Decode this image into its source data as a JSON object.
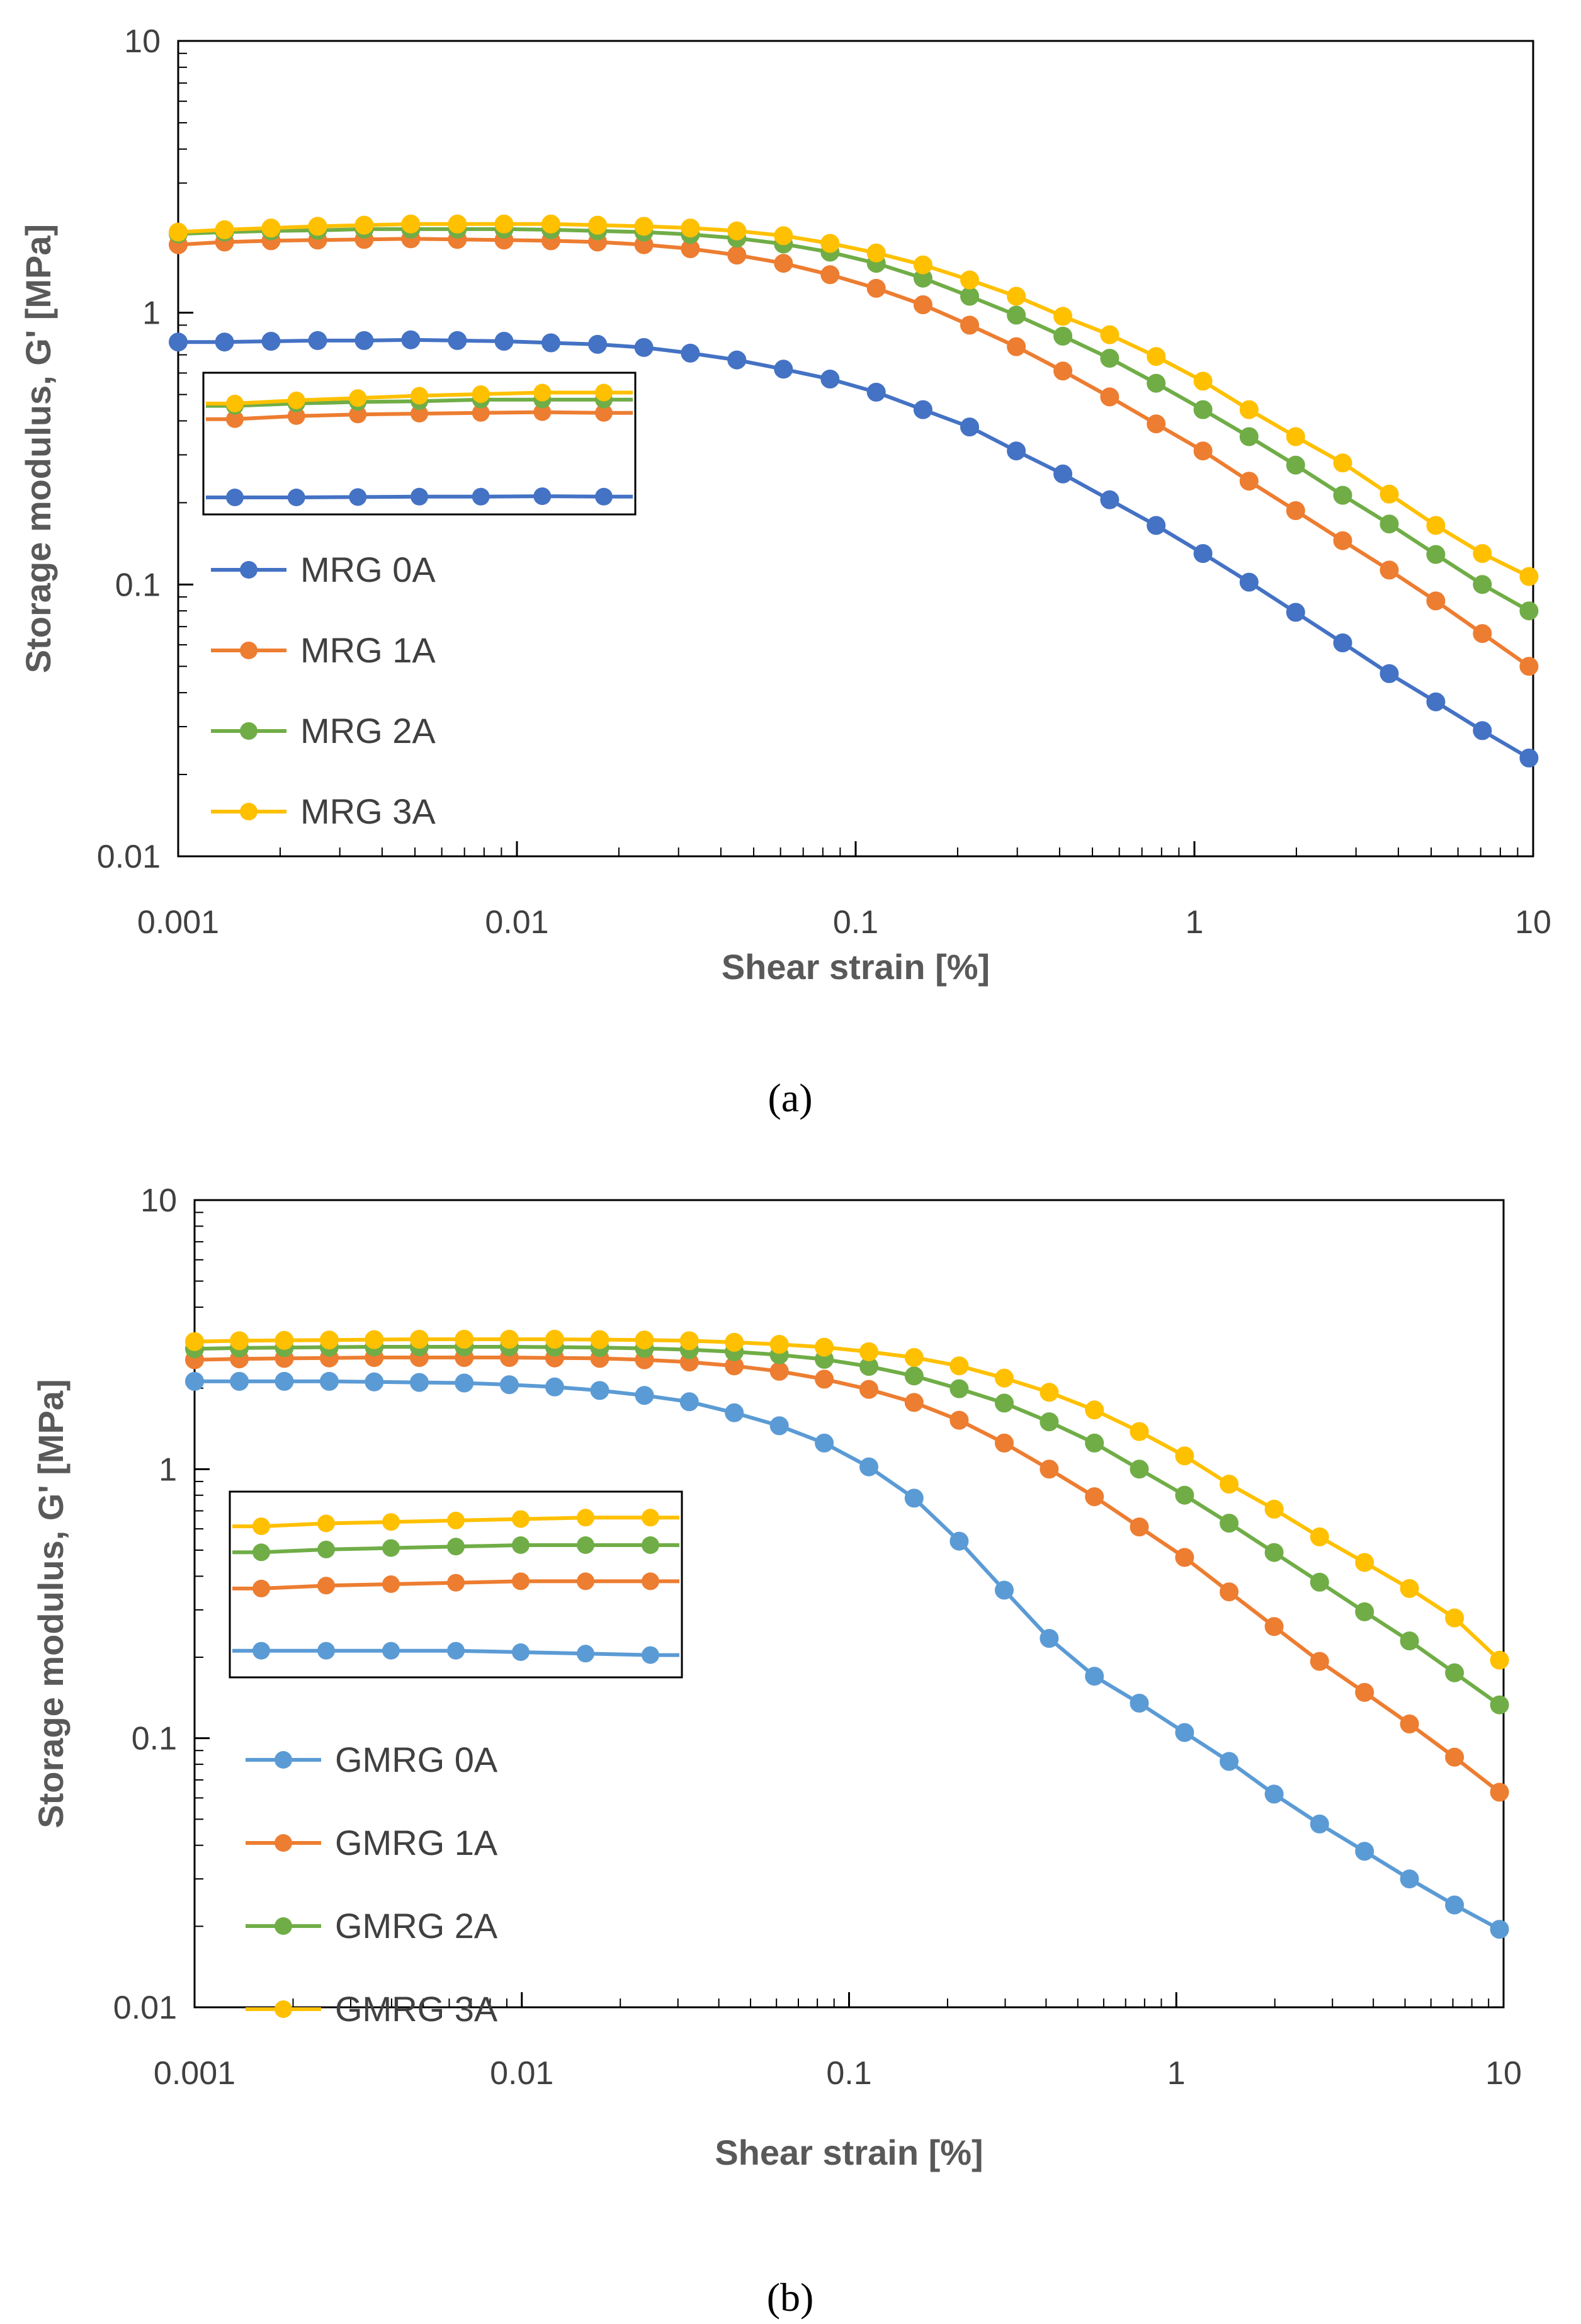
{
  "chart_data": [
    {
      "type": "line",
      "panel": "a",
      "xscale": "log",
      "yscale": "log",
      "xlim": [
        0.001,
        10
      ],
      "ylim": [
        0.01,
        10
      ],
      "xlabel": "Shear strain [%]",
      "ylabel": "Storage modulus, G' [MPa]",
      "x_ticks": [
        "0.001",
        "0.01",
        "0.1",
        "1",
        "10"
      ],
      "y_ticks": [
        "0.01",
        "0.1",
        "1",
        "10"
      ],
      "legend_position": "left",
      "x": [
        0.001,
        0.00137,
        0.00188,
        0.00258,
        0.00354,
        0.00486,
        0.00667,
        0.00916,
        0.0126,
        0.0173,
        0.0237,
        0.0325,
        0.0446,
        0.0612,
        0.084,
        0.115,
        0.158,
        0.217,
        0.298,
        0.409,
        0.562,
        0.771,
        1.06,
        1.45,
        1.99,
        2.74,
        3.76,
        5.16,
        7.08,
        9.72
      ],
      "series": [
        {
          "name": "MRG 0A",
          "color": "#4472C4",
          "values": [
            0.78,
            0.78,
            0.785,
            0.79,
            0.79,
            0.795,
            0.79,
            0.785,
            0.775,
            0.765,
            0.745,
            0.71,
            0.67,
            0.62,
            0.57,
            0.51,
            0.44,
            0.38,
            0.31,
            0.255,
            0.205,
            0.165,
            0.13,
            0.102,
            0.079,
            0.061,
            0.047,
            0.037,
            0.029,
            0.023
          ]
        },
        {
          "name": "MRG 1A",
          "color": "#ED7D31",
          "values": [
            1.78,
            1.82,
            1.84,
            1.85,
            1.86,
            1.87,
            1.86,
            1.85,
            1.84,
            1.82,
            1.78,
            1.72,
            1.63,
            1.52,
            1.38,
            1.23,
            1.07,
            0.9,
            0.75,
            0.61,
            0.49,
            0.39,
            0.31,
            0.24,
            0.187,
            0.145,
            0.113,
            0.087,
            0.066,
            0.05
          ]
        },
        {
          "name": "MRG 2A",
          "color": "#70AD47",
          "values": [
            1.95,
            1.98,
            2.0,
            2.01,
            2.03,
            2.03,
            2.03,
            2.03,
            2.02,
            2.0,
            1.98,
            1.94,
            1.88,
            1.79,
            1.67,
            1.52,
            1.34,
            1.15,
            0.98,
            0.82,
            0.68,
            0.55,
            0.44,
            0.35,
            0.275,
            0.213,
            0.167,
            0.129,
            0.1,
            0.08
          ]
        },
        {
          "name": "MRG 3A",
          "color": "#FFC000",
          "values": [
            1.98,
            2.02,
            2.05,
            2.08,
            2.1,
            2.12,
            2.12,
            2.12,
            2.12,
            2.1,
            2.08,
            2.05,
            2.0,
            1.92,
            1.8,
            1.66,
            1.5,
            1.32,
            1.15,
            0.97,
            0.83,
            0.69,
            0.56,
            0.44,
            0.35,
            0.28,
            0.215,
            0.165,
            0.13,
            0.107
          ]
        }
      ]
    },
    {
      "type": "line",
      "panel": "b",
      "xscale": "log",
      "yscale": "log",
      "xlim": [
        0.001,
        10
      ],
      "ylim": [
        0.01,
        10
      ],
      "xlabel": "Shear strain [%]",
      "ylabel": "Storage modulus, G' [MPa]",
      "x_ticks": [
        "0.001",
        "0.01",
        "0.1",
        "1",
        "10"
      ],
      "y_ticks": [
        "0.01",
        "0.1",
        "1",
        "10"
      ],
      "legend_position": "left",
      "x": [
        0.001,
        0.00137,
        0.00188,
        0.00258,
        0.00354,
        0.00486,
        0.00667,
        0.00916,
        0.0126,
        0.0173,
        0.0237,
        0.0325,
        0.0446,
        0.0612,
        0.084,
        0.115,
        0.158,
        0.217,
        0.298,
        0.409,
        0.562,
        0.771,
        1.06,
        1.45,
        1.99,
        2.74,
        3.76,
        5.16,
        7.08,
        9.72
      ],
      "series": [
        {
          "name": "GMRG 0A",
          "color": "#5B9BD5",
          "values": [
            2.12,
            2.12,
            2.12,
            2.12,
            2.11,
            2.1,
            2.09,
            2.06,
            2.02,
            1.96,
            1.88,
            1.78,
            1.62,
            1.45,
            1.25,
            1.02,
            0.78,
            0.54,
            0.355,
            0.235,
            0.17,
            0.135,
            0.105,
            0.082,
            0.062,
            0.048,
            0.038,
            0.03,
            0.024,
            0.0195
          ]
        },
        {
          "name": "GMRG 1A",
          "color": "#ED7D31",
          "values": [
            2.55,
            2.57,
            2.58,
            2.59,
            2.6,
            2.6,
            2.6,
            2.6,
            2.59,
            2.58,
            2.55,
            2.5,
            2.42,
            2.31,
            2.16,
            1.98,
            1.77,
            1.52,
            1.25,
            1.0,
            0.79,
            0.61,
            0.47,
            0.35,
            0.26,
            0.193,
            0.148,
            0.113,
            0.085,
            0.063
          ]
        },
        {
          "name": "GMRG 2A",
          "color": "#70AD47",
          "values": [
            2.8,
            2.82,
            2.83,
            2.84,
            2.85,
            2.85,
            2.85,
            2.85,
            2.84,
            2.83,
            2.81,
            2.78,
            2.73,
            2.66,
            2.56,
            2.41,
            2.22,
            1.99,
            1.76,
            1.5,
            1.25,
            1.0,
            0.8,
            0.63,
            0.49,
            0.38,
            0.295,
            0.23,
            0.175,
            0.133
          ]
        },
        {
          "name": "GMRG 3A",
          "color": "#FFC000",
          "values": [
            2.98,
            3.0,
            3.01,
            3.02,
            3.03,
            3.04,
            3.04,
            3.04,
            3.04,
            3.03,
            3.02,
            3.0,
            2.96,
            2.91,
            2.84,
            2.73,
            2.6,
            2.42,
            2.18,
            1.93,
            1.66,
            1.38,
            1.12,
            0.88,
            0.71,
            0.56,
            0.45,
            0.36,
            0.28,
            0.195
          ]
        }
      ]
    }
  ],
  "captions": {
    "a": "(a)",
    "b": "(b)"
  }
}
